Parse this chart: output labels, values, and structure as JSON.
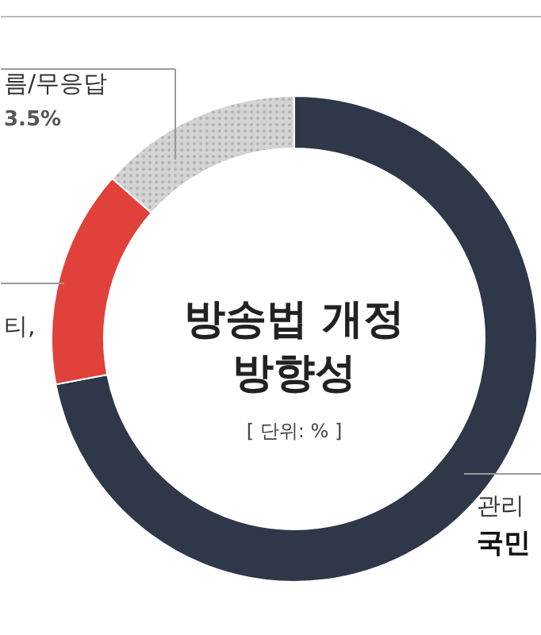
{
  "chart_data": {
    "type": "donut",
    "title": "방송법 개정\n방향성",
    "subtitle": "[ 단위: % ]",
    "categories": [
      "관리\n국민",
      null,
      "름/무응답"
    ],
    "values": [
      72,
      14.5,
      13.5
    ],
    "colors": [
      "#2e3849",
      "#e0413a",
      "#d4d4d4"
    ],
    "annotations": [
      "3.5%",
      "티,"
    ]
  }
}
